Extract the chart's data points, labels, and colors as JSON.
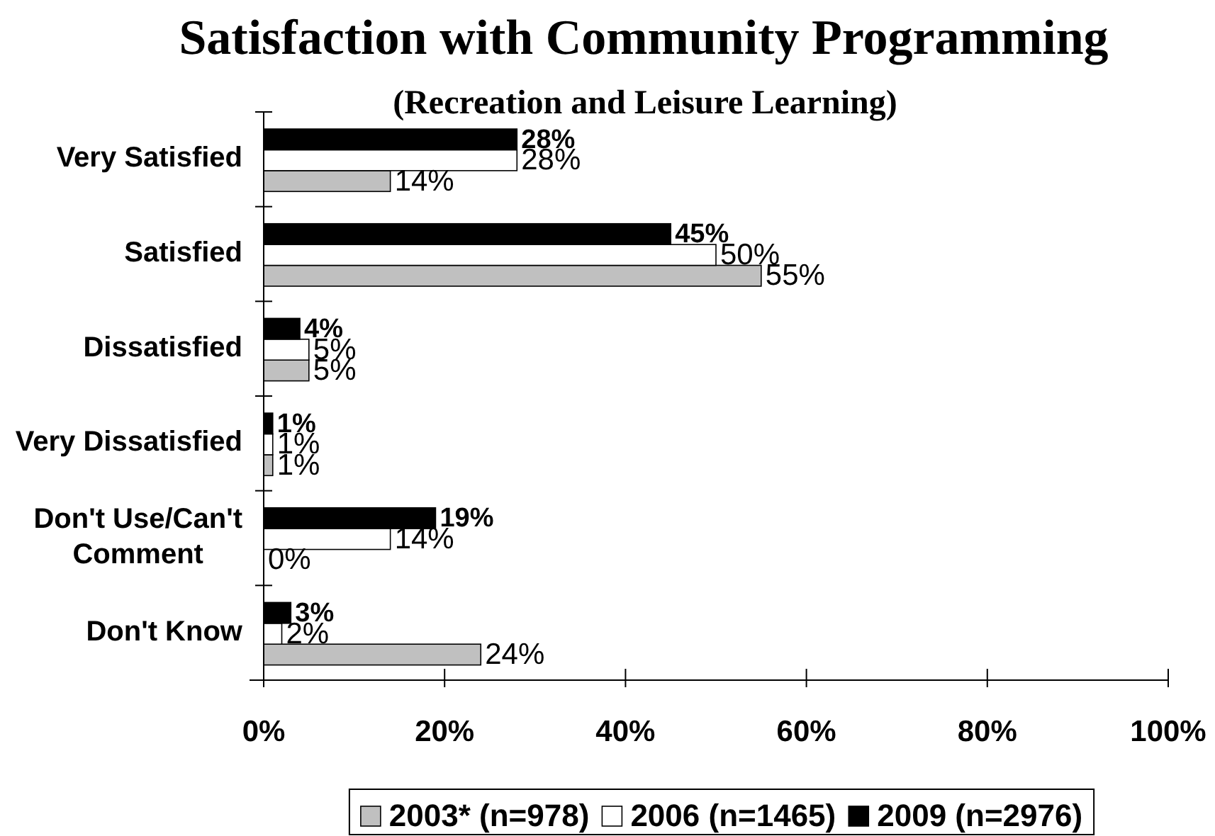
{
  "chart_data": {
    "type": "bar",
    "orientation": "horizontal",
    "title": "Satisfaction with Community Programming",
    "subtitle": "(Recreation and Leisure Learning)",
    "categories": [
      "Very Satisfied",
      "Satisfied",
      "Dissatisfied",
      "Very Dissatisfied",
      "Don't Use/Can't Comment",
      "Don't Know"
    ],
    "series": [
      {
        "name": "2003* (n=978)",
        "color": "#c0c0c0",
        "values": [
          14,
          55,
          5,
          1,
          0,
          24
        ],
        "value_labels": [
          "14%",
          "55%",
          "5%",
          "1%",
          "0%",
          "24%"
        ]
      },
      {
        "name": "2006 (n=1465)",
        "color": "#ffffff",
        "values": [
          28,
          50,
          5,
          1,
          14,
          2
        ],
        "value_labels": [
          "28%",
          "50%",
          "5%",
          "1%",
          "14%",
          "2%"
        ]
      },
      {
        "name": "2009 (n=2976)",
        "color": "#000000",
        "values": [
          28,
          45,
          4,
          1,
          19,
          3
        ],
        "value_labels": [
          "28%",
          "45%",
          "4%",
          "1%",
          "19%",
          "3%"
        ]
      }
    ],
    "xlim": [
      0,
      100
    ],
    "xticks": [
      {
        "value": 0,
        "label": "0%"
      },
      {
        "value": 20,
        "label": "20%"
      },
      {
        "value": 40,
        "label": "40%"
      },
      {
        "value": 60,
        "label": "60%"
      },
      {
        "value": 80,
        "label": "80%"
      },
      {
        "value": 100,
        "label": "100%"
      }
    ],
    "legend": "bottom"
  }
}
